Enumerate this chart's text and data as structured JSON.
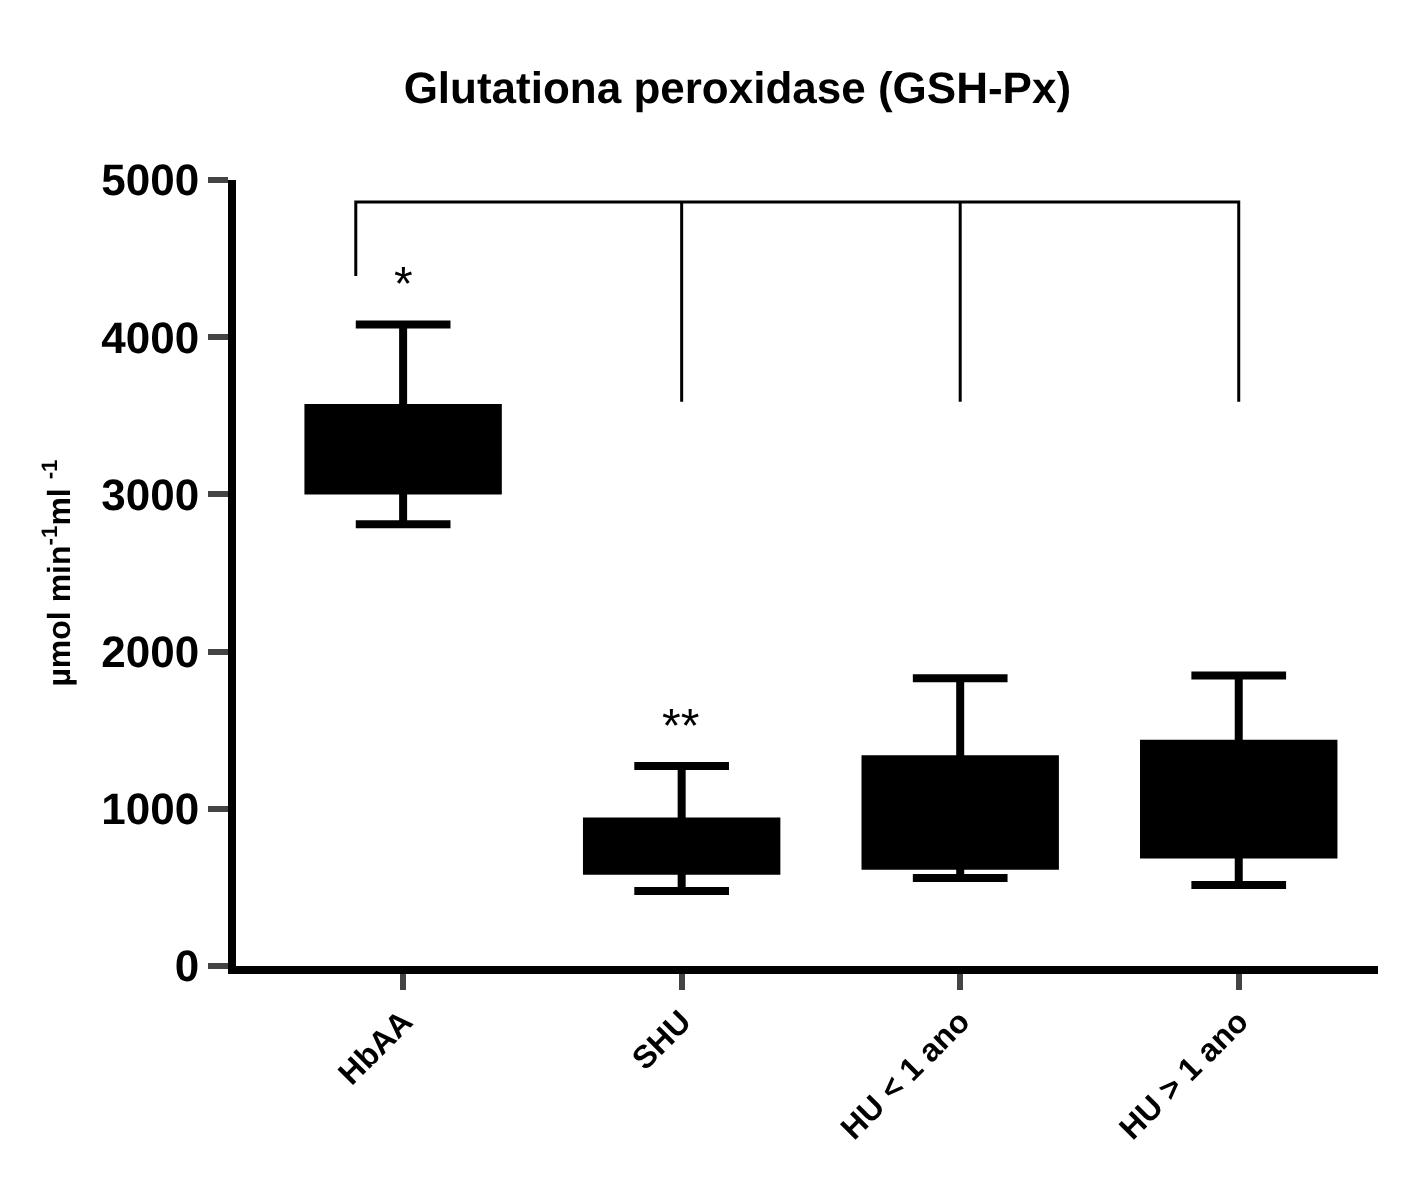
{
  "chart_data": {
    "type": "box",
    "title": "Glutationa peroxidase (GSH-Px)",
    "ylabel": "µmol min$^{-1}$ml $^{-1}$",
    "categories": [
      "HbAA",
      "SHU",
      "HU < 1 ano",
      "HU > 1 ano"
    ],
    "boxes": [
      {
        "low": 2810,
        "q1": 3025,
        "median": 3300,
        "q3": 3550,
        "high": 4080
      },
      {
        "low": 477,
        "q1": 606,
        "median": 760,
        "q3": 920,
        "high": 1272
      },
      {
        "low": 560,
        "q1": 637,
        "median": 950,
        "q3": 1315,
        "high": 1830
      },
      {
        "low": 515,
        "q1": 709,
        "median": 1050,
        "q3": 1414,
        "high": 1848
      }
    ],
    "color": "#000000",
    "ylim": [
      0,
      5000
    ],
    "yticks": [
      0,
      1000,
      2000,
      3000,
      4000,
      5000
    ],
    "grid": false,
    "annotations": [
      "*",
      "**"
    ]
  }
}
